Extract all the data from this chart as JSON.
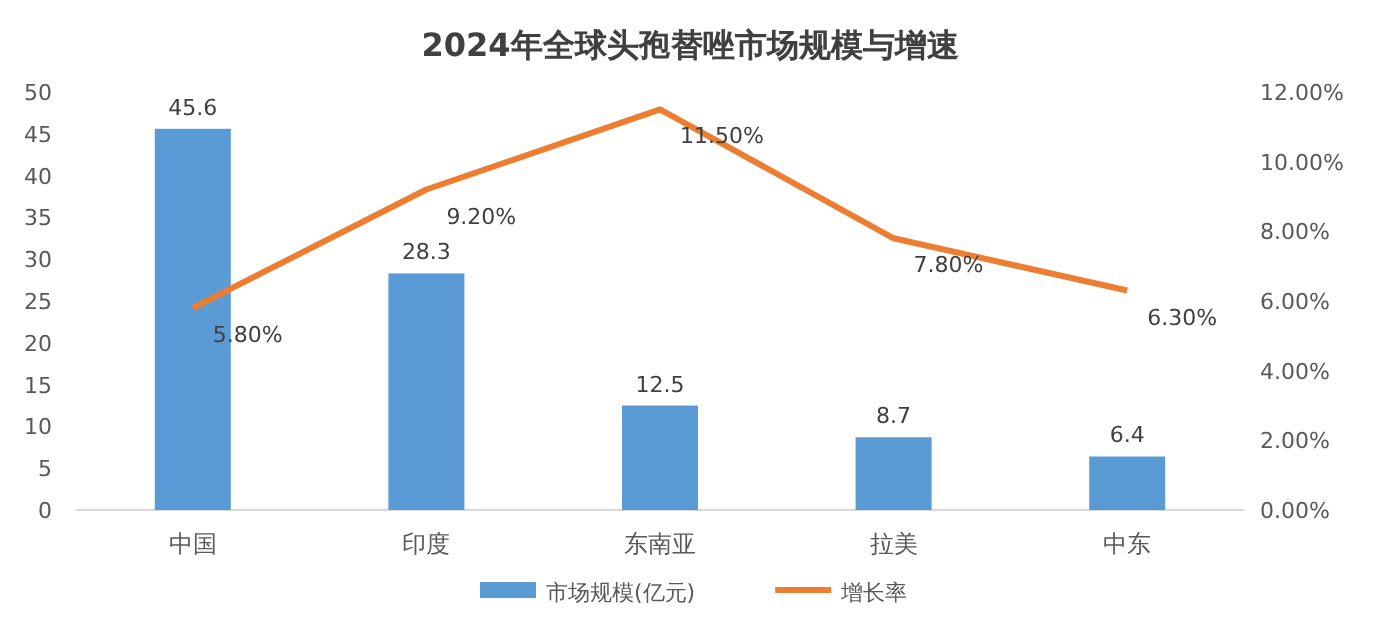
{
  "chart_data": {
    "type": "bar",
    "title": "2024年全球头孢替唑市场规模与增速",
    "categories": [
      "中国",
      "印度",
      "东南亚",
      "拉美",
      "中东"
    ],
    "series": [
      {
        "name": "市场规模(亿元)",
        "color": "#5b9bd5",
        "values": [
          45.6,
          28.3,
          12.5,
          8.7,
          6.4
        ],
        "value_labels": [
          "45.6",
          "28.3",
          "12.5",
          "8.7",
          "6.4"
        ]
      },
      {
        "name": "增长率",
        "type": "line",
        "axis": "y2",
        "color": "#ed7d31",
        "values": [
          5.8,
          9.2,
          11.5,
          7.8,
          6.3
        ],
        "value_labels": [
          "5.80%",
          "9.20%",
          "11.50%",
          "7.80%",
          "6.30%"
        ]
      }
    ],
    "ylim": [
      0,
      50
    ],
    "yticks": [
      0,
      5,
      10,
      15,
      20,
      25,
      30,
      35,
      40,
      45,
      50
    ],
    "y2lim": [
      0,
      12
    ],
    "y2ticks": [
      {
        "value": 0,
        "label": "0.00%"
      },
      {
        "value": 2,
        "label": "2.00%"
      },
      {
        "value": 4,
        "label": "4.00%"
      },
      {
        "value": 6,
        "label": "6.00%"
      },
      {
        "value": 8,
        "label": "8.00%"
      },
      {
        "value": 10,
        "label": "10.00%"
      },
      {
        "value": 12,
        "label": "12.00%"
      }
    ],
    "legend": "bottom",
    "marker": "none",
    "line_style": "solid"
  }
}
